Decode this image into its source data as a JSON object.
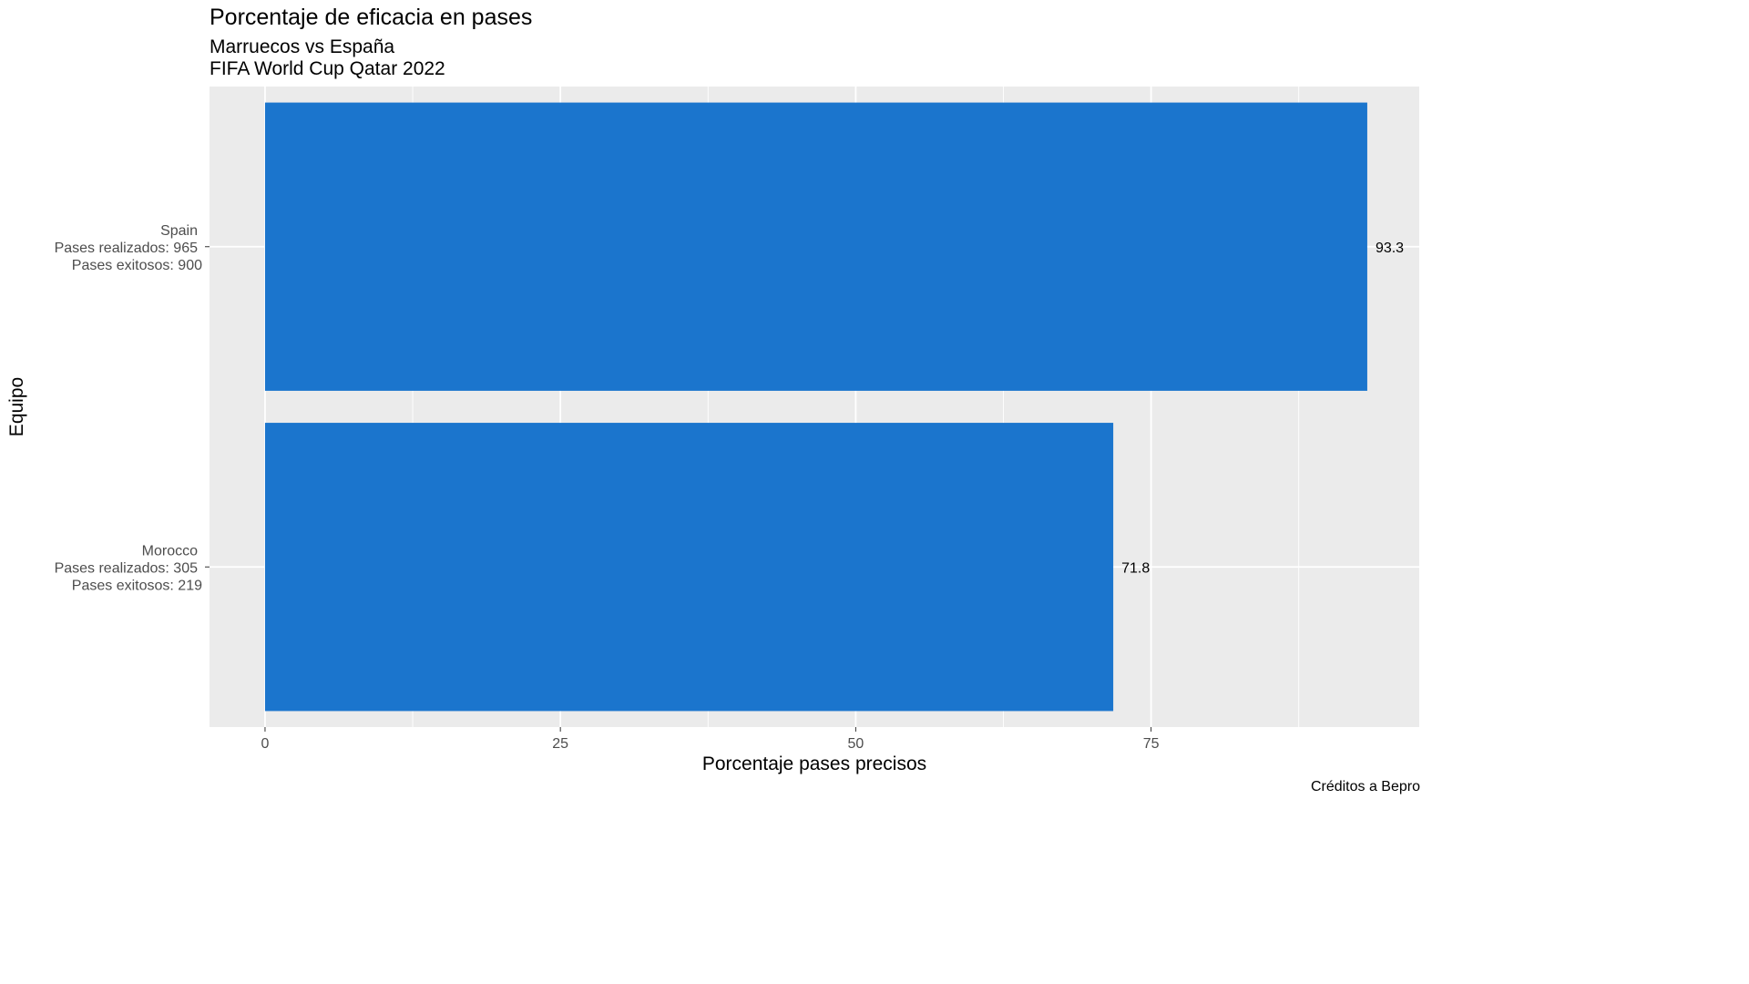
{
  "chart_data": {
    "type": "bar",
    "orientation": "horizontal",
    "title": "Porcentaje de eficacia en pases",
    "subtitle": "Marruecos vs España\nFIFA World Cup Qatar 2022",
    "caption": "Créditos a Bepro",
    "xlabel": "Porcentaje pases precisos",
    "ylabel": "Equipo",
    "xlim": [
      -4.7,
      97.7
    ],
    "xticks": [
      0,
      25,
      50,
      75
    ],
    "grid": true,
    "categories": [
      {
        "lines": [
          "Spain",
          "Pases realizados:  965",
          "Pases exitosos:  900"
        ]
      },
      {
        "lines": [
          "Morocco",
          "Pases realizados:  305",
          "Pases exitosos:  219"
        ]
      }
    ],
    "values": [
      93.3,
      71.8
    ],
    "data_labels": [
      "93.3",
      "71.8"
    ],
    "colors": {
      "bar": "#1B75CD",
      "panel": "#EBEBEB",
      "grid": "#FFFFFF",
      "axis_text": "#4D4D4D"
    }
  }
}
